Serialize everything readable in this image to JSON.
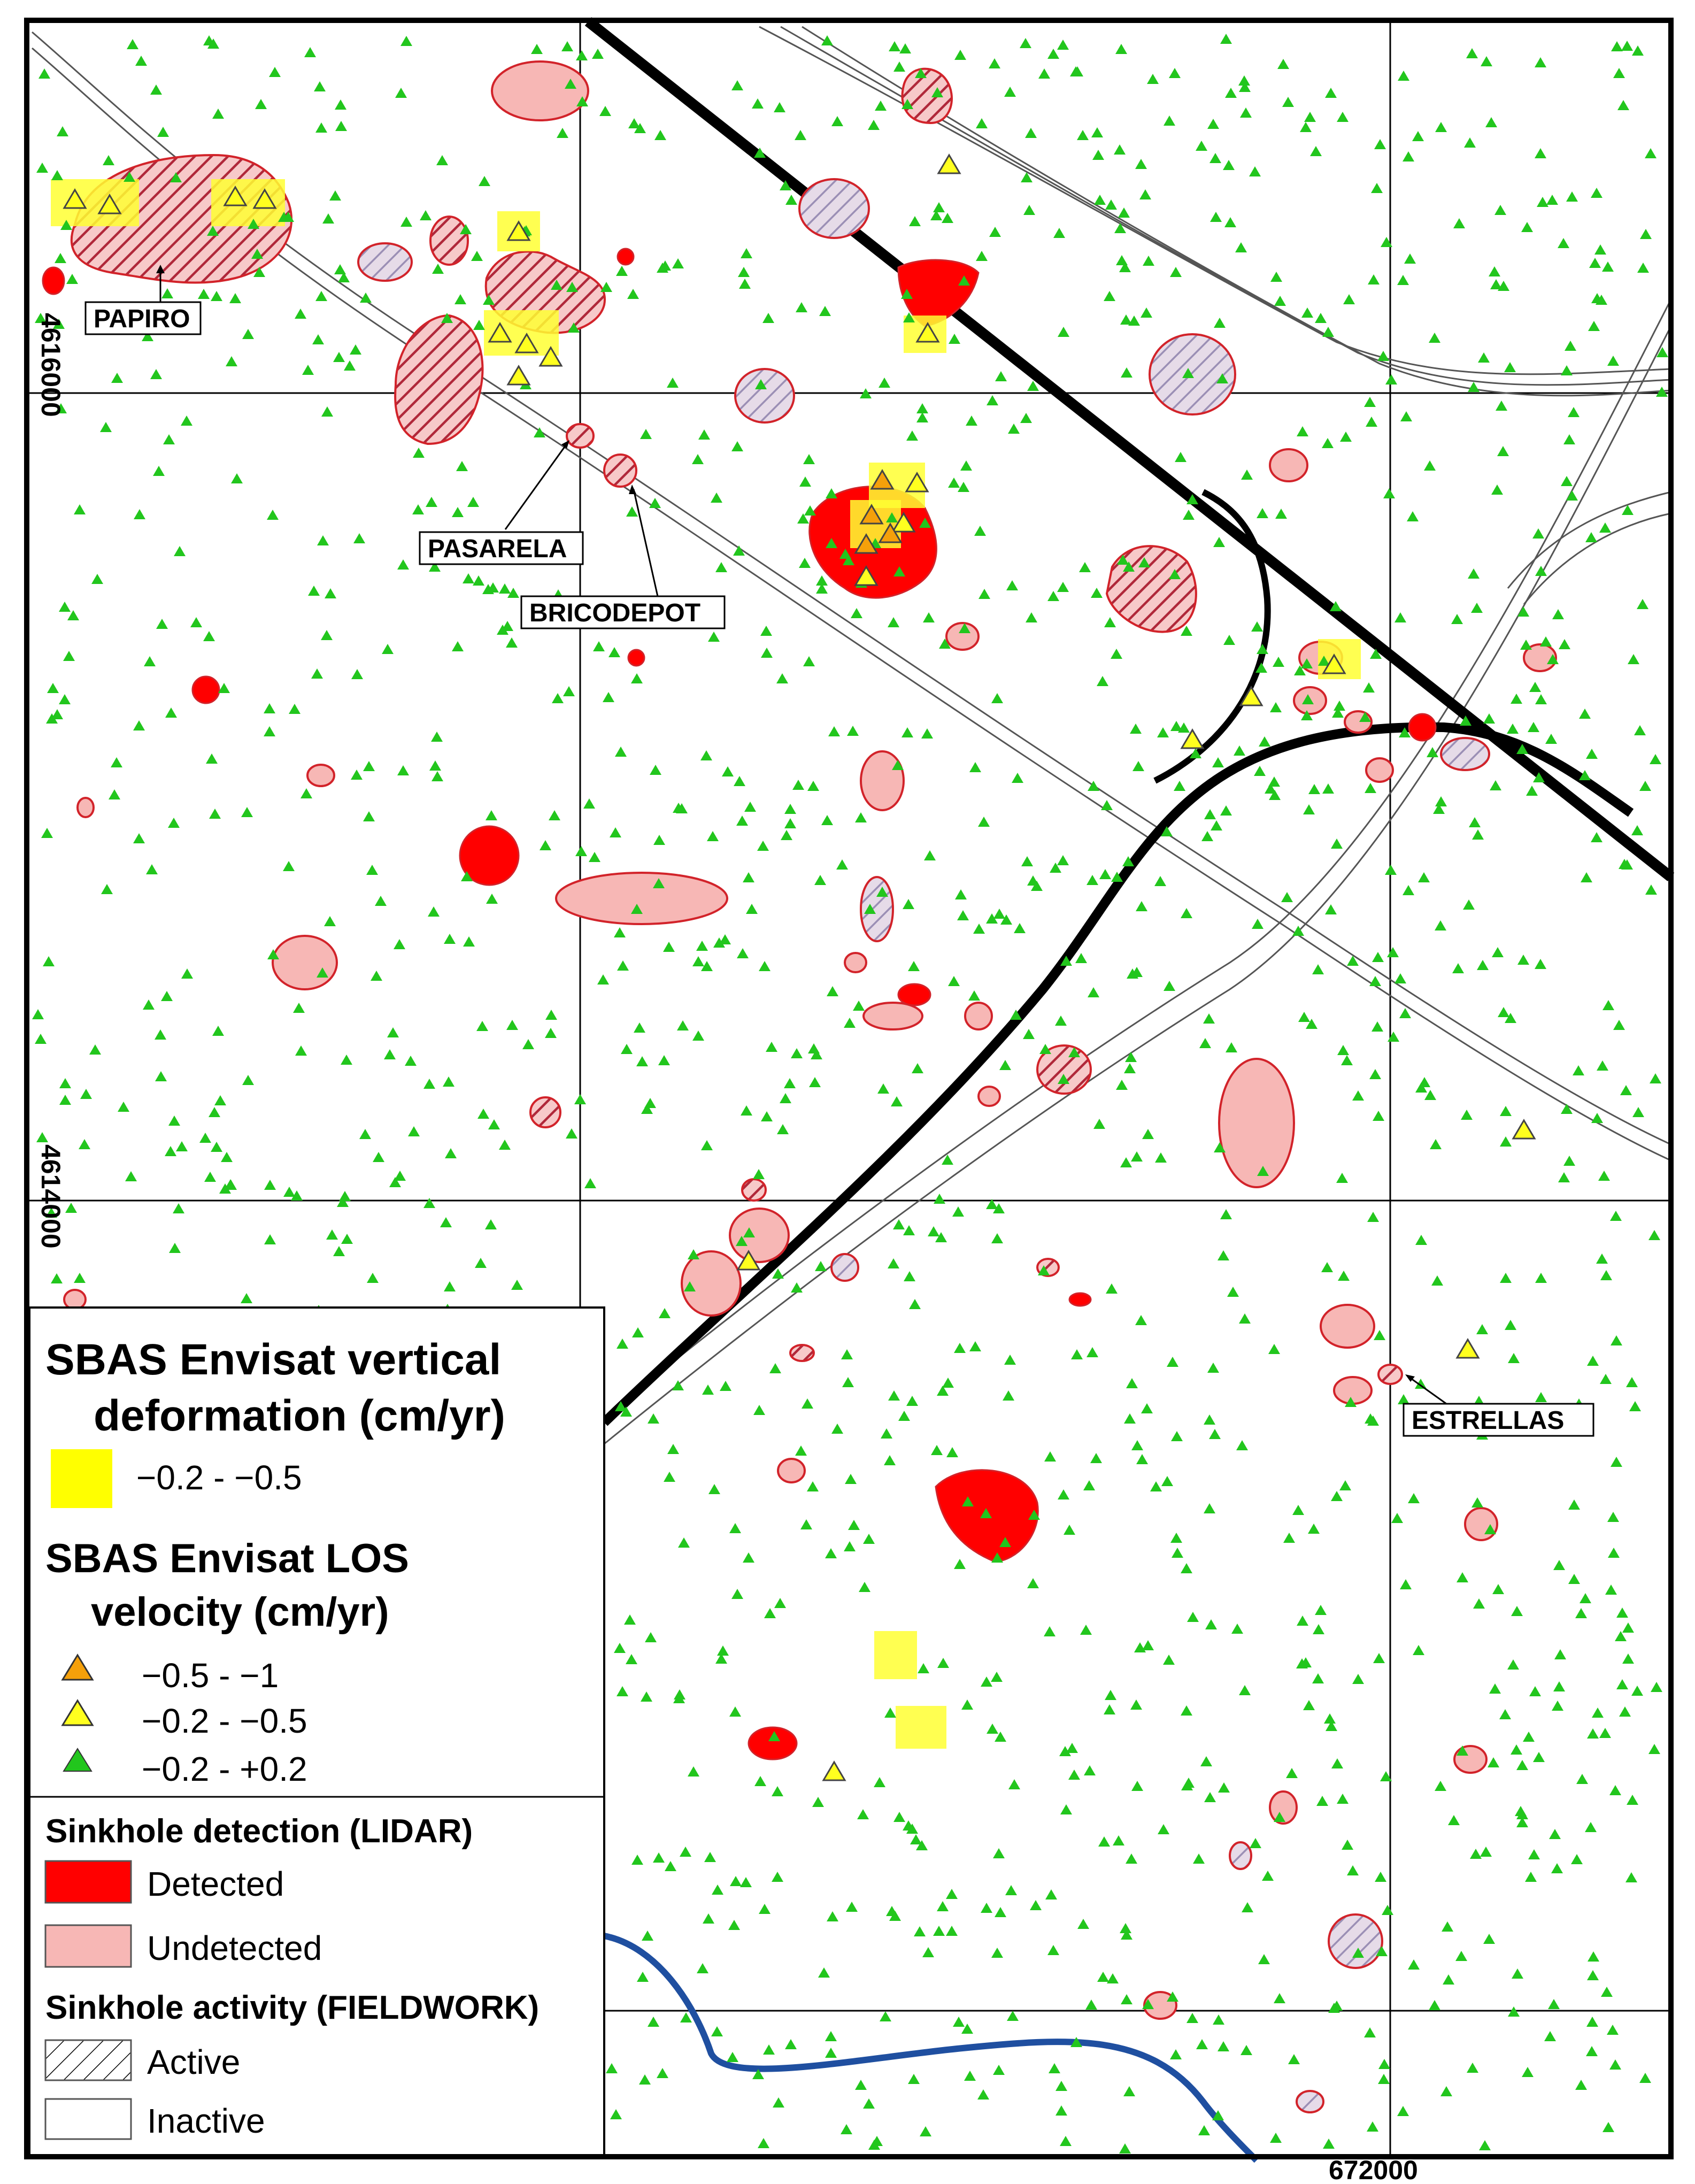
{
  "labels": {
    "papiro": "PAPIRO",
    "pasarela": "PASARELA",
    "bricodepot": "BRICODEPOT",
    "estrellas": "ESTRELLAS"
  },
  "coordinates": {
    "northing_upper": "4616000",
    "northing_lower": "4614000",
    "easting": "672000"
  },
  "legend": {
    "sbas_vertical_title_line1": "SBAS Envisat vertical",
    "sbas_vertical_title_line2": "deformation (cm/yr)",
    "sbas_vertical_item": "−0.2 - −0.5",
    "sbas_los_title_line1": "SBAS Envisat LOS",
    "sbas_los_title_line2": "velocity (cm/yr)",
    "los_items": [
      {
        "label": "−0.5 - −1",
        "color": "#f5a00a"
      },
      {
        "label": "−0.2 - −0.5",
        "color": "#ffff1f"
      },
      {
        "label": "−0.2 - +0.2",
        "color": "#22c61d"
      }
    ],
    "lidar_title": "Sinkhole detection (LIDAR)",
    "detected_label": "Detected",
    "undetected_label": "Undetected",
    "fieldwork_title": "Sinkhole activity (FIELDWORK)",
    "active_label": "Active",
    "inactive_label": "Inactive"
  },
  "colors": {
    "detected": "#ff0000",
    "undetected": "#f7b7b5",
    "vertical_highlight": "#ffff33",
    "green_triangle": "#22c61d",
    "yellow_triangle": "#ffff1f",
    "orange_triangle": "#f5a00a",
    "river": "#1f4fa0"
  }
}
